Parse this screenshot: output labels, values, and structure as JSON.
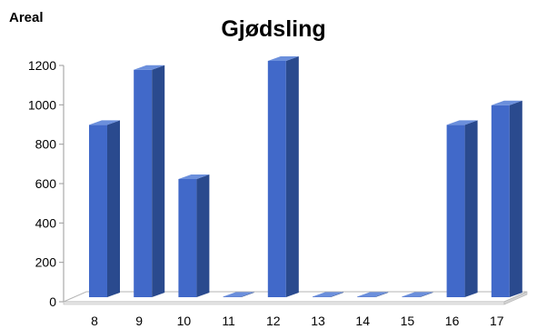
{
  "chart_data": {
    "type": "bar",
    "title": "Gjødsling",
    "ylabel": "Areal",
    "xlabel": "",
    "categories": [
      "8",
      "9",
      "10",
      "11",
      "12",
      "13",
      "14",
      "15",
      "16",
      "17"
    ],
    "values": [
      875,
      1155,
      600,
      0,
      1200,
      0,
      0,
      0,
      875,
      975
    ],
    "yticks": [
      "0",
      "200",
      "400",
      "600",
      "800",
      "1000",
      "1200"
    ],
    "ylim": [
      0,
      1200
    ],
    "grid": false,
    "legend": "none",
    "style": "3d-column",
    "colors": {
      "bar_front": "#4169c9",
      "bar_side": "#2a4a8e",
      "bar_top": "#6b8fdc",
      "floor_top": "#ffffff",
      "floor_edge": "#b5b5b5",
      "axis": "#9a9a9a"
    }
  }
}
